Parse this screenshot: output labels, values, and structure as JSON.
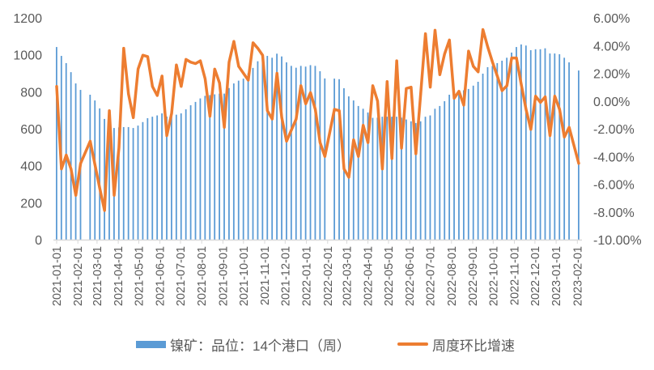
{
  "chart_data": {
    "type": "bar+line",
    "title": "",
    "colors": {
      "bars": "#5b9bd5",
      "line": "#ed7d31",
      "axis": "#d9d9d9",
      "text": "#595959"
    },
    "grid": false,
    "legend_position": "bottom",
    "y_left": {
      "range": [
        0,
        1200
      ],
      "ticks": [
        "0",
        "200",
        "400",
        "600",
        "800",
        "1000",
        "1200"
      ]
    },
    "y_right": {
      "range": [
        -10,
        6
      ],
      "unit": "%",
      "ticks": [
        "-10.00%",
        "-8.00%",
        "-6.00%",
        "-4.00%",
        "-2.00%",
        "0.00%",
        "2.00%",
        "4.00%",
        "6.00%"
      ]
    },
    "x_range": [
      "2021-01-01",
      "2023-02-03"
    ],
    "x_ticks": [
      "2021-01-01",
      "2021-02-01",
      "2021-03-01",
      "2021-04-01",
      "2021-05-01",
      "2021-06-01",
      "2021-07-01",
      "2021-08-01",
      "2021-09-01",
      "2021-10-01",
      "2021-11-01",
      "2021-12-01",
      "2022-01-01",
      "2022-02-01",
      "2022-03-01",
      "2022-04-01",
      "2022-05-01",
      "2022-06-01",
      "2022-07-01",
      "2022-08-01",
      "2022-09-01",
      "2022-10-01",
      "2022-11-01",
      "2022-12-01",
      "2023-01-01",
      "2023-02-01"
    ],
    "dates": [
      "2021-01-01",
      "2021-01-08",
      "2021-01-15",
      "2021-01-22",
      "2021-01-29",
      "2021-02-05",
      "2021-02-12",
      "2021-02-19",
      "2021-02-26",
      "2021-03-05",
      "2021-03-12",
      "2021-03-19",
      "2021-03-26",
      "2021-04-02",
      "2021-04-09",
      "2021-04-16",
      "2021-04-23",
      "2021-04-30",
      "2021-05-07",
      "2021-05-14",
      "2021-05-21",
      "2021-05-28",
      "2021-06-04",
      "2021-06-11",
      "2021-06-18",
      "2021-06-25",
      "2021-07-02",
      "2021-07-09",
      "2021-07-16",
      "2021-07-23",
      "2021-07-30",
      "2021-08-06",
      "2021-08-13",
      "2021-08-20",
      "2021-08-27",
      "2021-09-03",
      "2021-09-10",
      "2021-09-17",
      "2021-09-24",
      "2021-10-01",
      "2021-10-08",
      "2021-10-15",
      "2021-10-22",
      "2021-10-29",
      "2021-11-05",
      "2021-11-12",
      "2021-11-19",
      "2021-11-26",
      "2021-12-03",
      "2021-12-10",
      "2021-12-17",
      "2021-12-24",
      "2021-12-31",
      "2022-01-07",
      "2022-01-14",
      "2022-01-21",
      "2022-01-28",
      "2022-02-04",
      "2022-02-11",
      "2022-02-18",
      "2022-02-25",
      "2022-03-04",
      "2022-03-11",
      "2022-03-18",
      "2022-03-25",
      "2022-04-01",
      "2022-04-08",
      "2022-04-15",
      "2022-04-22",
      "2022-04-29",
      "2022-05-06",
      "2022-05-13",
      "2022-05-20",
      "2022-05-27",
      "2022-06-03",
      "2022-06-10",
      "2022-06-17",
      "2022-06-24",
      "2022-07-01",
      "2022-07-08",
      "2022-07-15",
      "2022-07-22",
      "2022-07-29",
      "2022-08-05",
      "2022-08-12",
      "2022-08-19",
      "2022-08-26",
      "2022-09-02",
      "2022-09-09",
      "2022-09-16",
      "2022-09-23",
      "2022-09-30",
      "2022-10-07",
      "2022-10-14",
      "2022-10-21",
      "2022-10-28",
      "2022-11-04",
      "2022-11-11",
      "2022-11-18",
      "2022-11-25",
      "2022-12-02",
      "2022-12-09",
      "2022-12-16",
      "2022-12-23",
      "2022-12-30",
      "2023-01-06",
      "2023-01-13",
      "2023-01-20",
      "2023-01-27",
      "2023-02-03"
    ],
    "series": [
      {
        "name": "镍矿：品位：14个港口（周）",
        "type": "bar",
        "axis": "left",
        "values": [
          1042,
          994,
          955,
          906,
          845,
          810,
          null,
          784,
          753,
          710,
          653,
          630,
          604,
          607,
          609,
          609,
          604,
          617,
          636,
          657,
          665,
          672,
          683,
          666,
          670,
          676,
          683,
          705,
          727,
          745,
          764,
          778,
          782,
          786,
          790,
          790,
          820,
          845,
          860,
          871,
          900,
          929,
          965,
          980,
          994,
          984,
          1006,
          991,
          959,
          940,
          930,
          940,
          936,
          944,
          940,
          911,
          872,
          null,
          871,
          868,
          819,
          775,
          753,
          723,
          708,
          688,
          659,
          660,
          665,
          665,
          665,
          665,
          660,
          650,
          640,
          631,
          640,
          665,
          672,
          708,
          723,
          749,
          784,
          795,
          800,
          808,
          815,
          833,
          854,
          898,
          933,
          940,
          955,
          968,
          984,
          1012,
          1042,
          1056,
          1050,
          1025,
          1030,
          1030,
          1035,
          1007,
          1007,
          1003,
          984,
          959,
          null,
          915
        ]
      },
      {
        "name": "周度环比增速",
        "type": "line",
        "axis": "right",
        "values": [
          1.05,
          -4.9,
          -3.9,
          -4.9,
          -6.8,
          -4.5,
          null,
          -2.9,
          -4.6,
          -6.3,
          -7.9,
          -0.7,
          -6.8,
          -3.4,
          3.8,
          0.5,
          -1.2,
          2.3,
          3.3,
          3.2,
          1.05,
          0.4,
          1.8,
          -2.5,
          -0.9,
          2.6,
          1.05,
          3.0,
          2.8,
          2.7,
          2.9,
          1.6,
          -1.1,
          2.3,
          1.3,
          -1.9,
          2.8,
          4.3,
          2.5,
          2.0,
          1.5,
          4.2,
          3.8,
          3.3,
          -0.7,
          -1.3,
          2.0,
          -1.2,
          -2.9,
          -2.1,
          -1.3,
          1.1,
          -0.2,
          0.6,
          -0.6,
          -3.0,
          -4.0,
          null,
          -0.6,
          -0.7,
          -4.9,
          -5.5,
          -2.8,
          -4.0,
          -1.75,
          -3.0,
          1.1,
          0.0,
          -4.9,
          1.4,
          -4.15,
          2.9,
          -3.4,
          0.9,
          1.0,
          -3.8,
          0.5,
          4.85,
          1.0,
          5.1,
          1.9,
          3.4,
          4.4,
          0.2,
          0.7,
          -0.3,
          3.6,
          2.5,
          2.1,
          5.15,
          3.9,
          2.8,
          1.8,
          0.75,
          1.1,
          3.1,
          3.1,
          1.2,
          -0.6,
          -2.05,
          0.35,
          -0.1,
          0.3,
          -2.5,
          0.35,
          -0.6,
          -2.6,
          -1.9,
          null,
          -4.5
        ]
      }
    ]
  }
}
